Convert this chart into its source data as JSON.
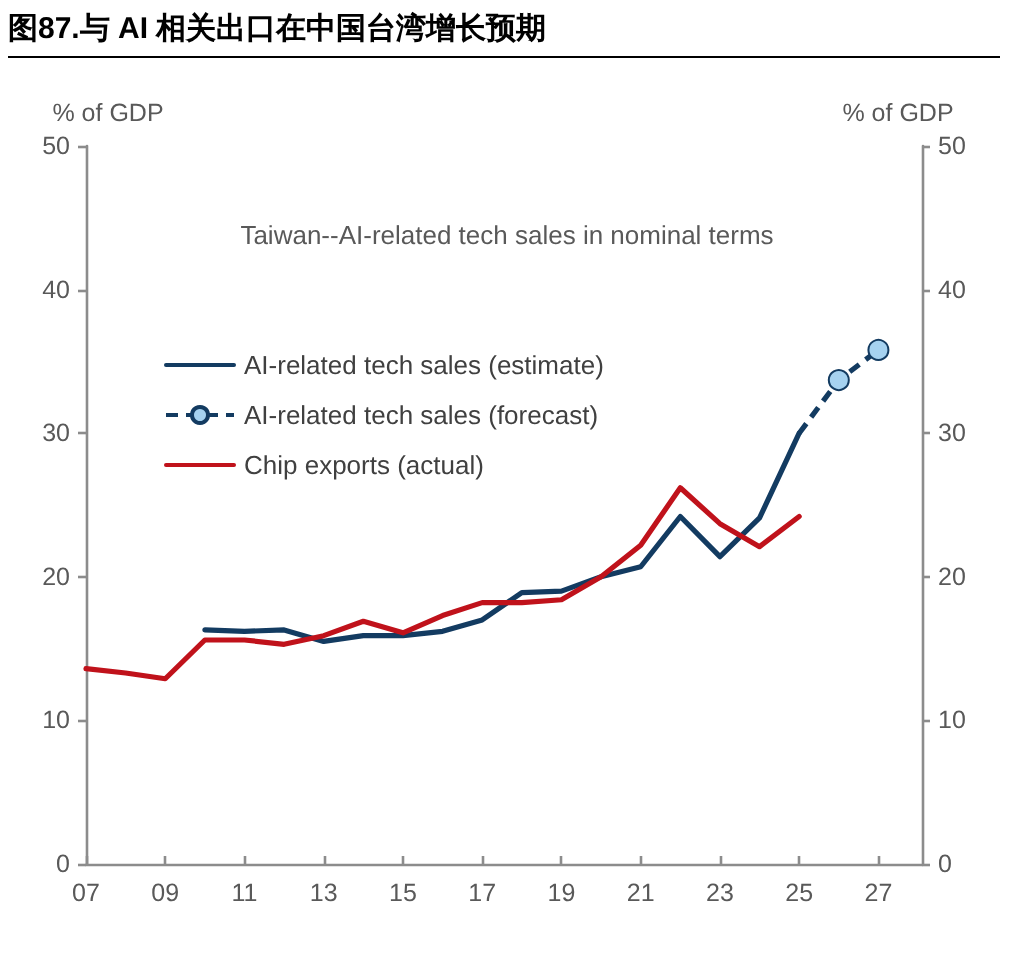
{
  "chart_data": {
    "type": "line",
    "title": "图87.与 AI 相关出口在中国台湾增长预期",
    "subtitle": "Taiwan--AI-related tech sales in nominal terms",
    "ylabel": "% of GDP",
    "y2label": "% of GDP",
    "xlim": [
      2007,
      2028.1
    ],
    "xticks": [
      {
        "value": 2007,
        "label": "07"
      },
      {
        "value": 2009,
        "label": "09"
      },
      {
        "value": 2011,
        "label": "11"
      },
      {
        "value": 2013,
        "label": "13"
      },
      {
        "value": 2015,
        "label": "15"
      },
      {
        "value": 2017,
        "label": "17"
      },
      {
        "value": 2019,
        "label": "19"
      },
      {
        "value": 2021,
        "label": "21"
      },
      {
        "value": 2023,
        "label": "23"
      },
      {
        "value": 2025,
        "label": "25"
      },
      {
        "value": 2027,
        "label": "27"
      }
    ],
    "ylim": [
      0,
      50
    ],
    "yticks": [
      0,
      10,
      20,
      30,
      40,
      50
    ],
    "y2lim": [
      0,
      50
    ],
    "y2ticks": [
      0,
      10,
      20,
      30,
      40,
      50
    ],
    "grid": false,
    "legend": "top left",
    "series": [
      {
        "name": "AI-related tech sales (estimate)",
        "color": "#133b61",
        "x": [
          2010,
          2011,
          2012,
          2013,
          2014,
          2015,
          2016,
          2017,
          2018,
          2019,
          2020,
          2021,
          2022,
          2023,
          2024,
          2025
        ],
        "values": [
          16.3,
          16.2,
          16.3,
          15.5,
          15.9,
          15.9,
          16.2,
          17.0,
          18.9,
          19.0,
          20.0,
          20.7,
          24.2,
          21.4,
          24.1,
          30.0
        ]
      },
      {
        "name": "AI-related tech sales (forecast)",
        "color": "#133b61",
        "line_style": "dashed",
        "marker": "circle",
        "colors": [
          null,
          "#a6d2f0",
          "#a6d2f0"
        ],
        "x": [
          2025,
          2026,
          2027
        ],
        "values": [
          30.0,
          33.7,
          35.8
        ]
      },
      {
        "name": "Chip exports (actual)",
        "color": "#c0121b",
        "x": [
          2007,
          2008,
          2009,
          2010,
          2011,
          2012,
          2013,
          2014,
          2015,
          2016,
          2017,
          2018,
          2019,
          2020,
          2021,
          2022,
          2023,
          2024,
          2025
        ],
        "values": [
          13.6,
          13.3,
          12.9,
          15.6,
          15.6,
          15.3,
          15.9,
          16.9,
          16.1,
          17.3,
          18.2,
          18.2,
          18.4,
          20.0,
          22.2,
          26.2,
          23.7,
          22.1,
          24.2
        ]
      }
    ]
  }
}
